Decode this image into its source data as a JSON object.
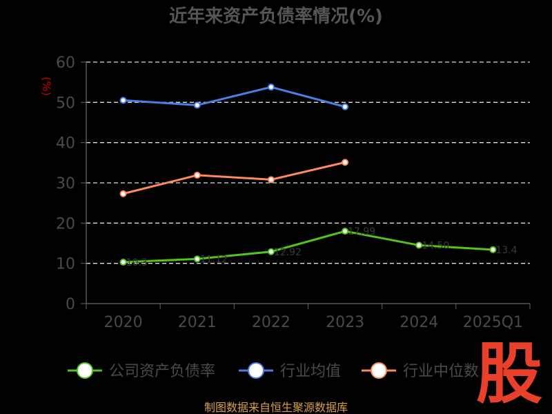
{
  "chart_data": {
    "type": "line",
    "title": "近年来资产负债率情况(%)",
    "ylabel": "(%)",
    "categories": [
      "2020",
      "2021",
      "2022",
      "2023",
      "2024",
      "2025Q1"
    ],
    "ylim": [
      0,
      60
    ],
    "yticks": [
      "0",
      "10",
      "20",
      "30",
      "40",
      "50",
      "60"
    ],
    "grid": true,
    "legend_position": "bottom",
    "series": [
      {
        "name": "公司资产负债率",
        "color": "#52c41a",
        "values": [
          10.3,
          11.1,
          12.9,
          18.0,
          14.5,
          13.4
        ],
        "labels": [
          "10.3",
          "11.12",
          "12.92",
          "17.99",
          "14.50",
          "13.4"
        ]
      },
      {
        "name": "行业均值",
        "color": "#4a7fe6",
        "values": [
          50.5,
          49.3,
          53.8,
          48.9,
          null,
          null
        ],
        "labels": []
      },
      {
        "name": "行业中位数",
        "color": "#ff8a5b",
        "values": [
          27.3,
          31.9,
          30.8,
          35.1,
          null,
          null
        ],
        "labels": []
      }
    ]
  },
  "footer": {
    "source": "制图数据来自恒生聚源数据库"
  },
  "brand": {
    "text": "股"
  }
}
